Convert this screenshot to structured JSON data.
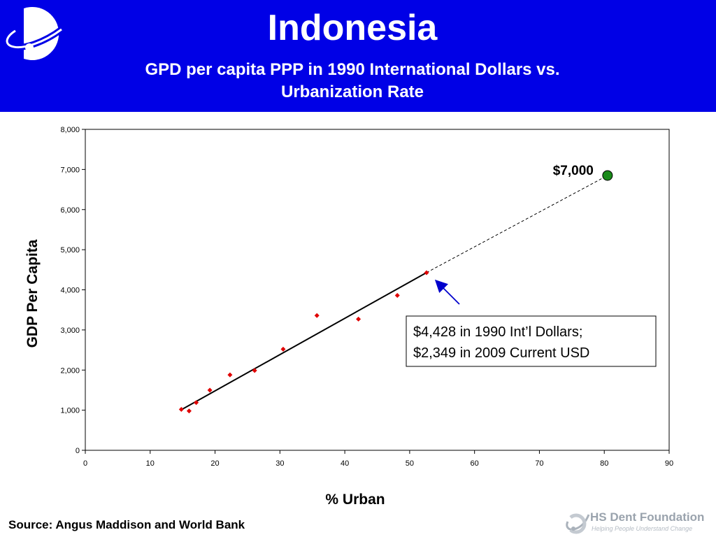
{
  "header": {
    "title": "Indonesia",
    "subtitle_line1": "GPD per capita PPP in 1990 International Dollars vs.",
    "subtitle_line2": "Urbanization Rate"
  },
  "chart_data": {
    "type": "scatter",
    "xlabel": "% Urban",
    "ylabel": "GDP Per Capita",
    "xlim": [
      0,
      90
    ],
    "ylim": [
      0,
      8000
    ],
    "x_ticks": [
      0,
      10,
      20,
      30,
      40,
      50,
      60,
      70,
      80,
      90
    ],
    "y_ticks": [
      "0",
      "1,000",
      "2,000",
      "3,000",
      "4,000",
      "5,000",
      "6,000",
      "7,000",
      "8,000"
    ],
    "y_tick_values": [
      0,
      1000,
      2000,
      3000,
      4000,
      5000,
      6000,
      7000,
      8000
    ],
    "grid": false,
    "series": [
      {
        "x": [
          14.8,
          16.0,
          17.1,
          19.2,
          22.3,
          26.1,
          30.5,
          35.7,
          42.1,
          48.1,
          52.6
        ],
        "y": [
          1020,
          980,
          1190,
          1500,
          1880,
          1990,
          2520,
          3360,
          3270,
          3860,
          4428
        ],
        "marker_color": "#e00000"
      }
    ],
    "trend_line": {
      "x": [
        14.8,
        52.6
      ],
      "y": [
        1010,
        4430
      ],
      "color": "#000000"
    },
    "projection": {
      "x": [
        52.6,
        80.5
      ],
      "y": [
        4430,
        6850
      ],
      "style": "dashed"
    },
    "target_point": {
      "x": 80.5,
      "y": 6850,
      "label": "$7,000",
      "color": "#1a8a1a"
    },
    "annotation": {
      "line1": "$4,428 in 1990 Int’l Dollars;",
      "line2": "$2,349 in 2009 Current USD",
      "arrow_color": "#0000cc"
    }
  },
  "footer": {
    "source": "Source: Angus Maddison and World Bank",
    "brand_name": "HS Dent Foundation",
    "brand_tagline": "Helping People Understand Change"
  },
  "colors": {
    "header_bg": "#0000e6",
    "marker": "#e00000",
    "target": "#1a8a1a",
    "arrow": "#0000cc"
  },
  "icons": {
    "logo": "ring-swoosh-logo",
    "brand_logo": "hs-dent-swoosh-logo"
  }
}
